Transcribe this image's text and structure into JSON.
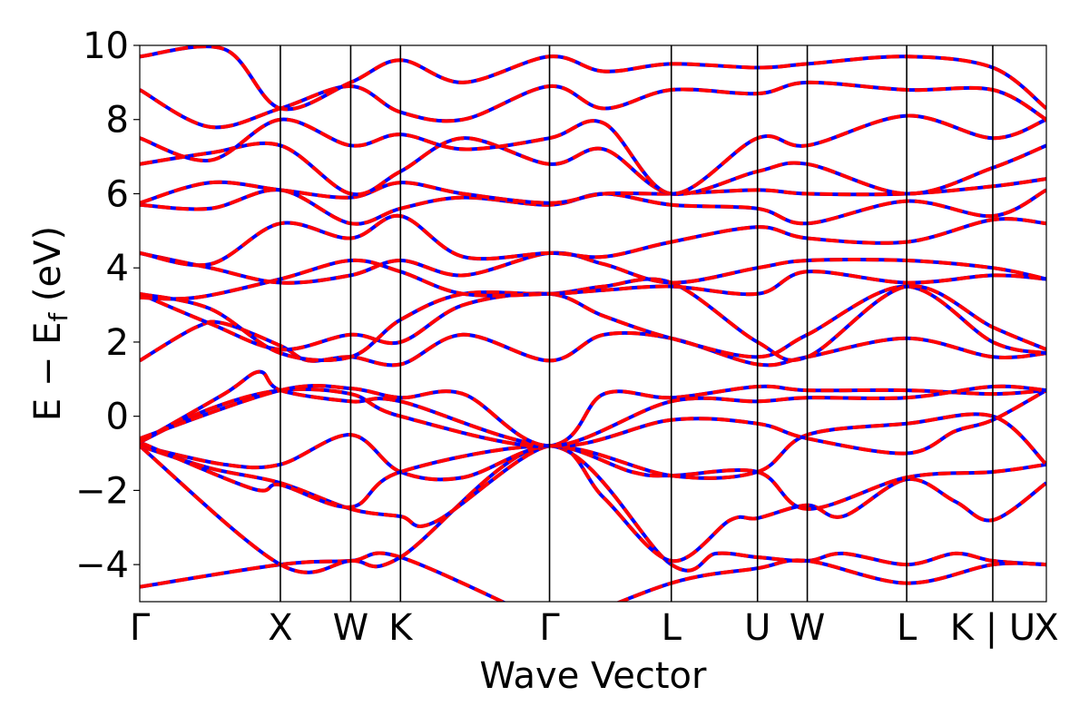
{
  "chart_data": {
    "type": "line",
    "title": "",
    "xlabel": "Wave Vector",
    "ylabel_parts": {
      "main": "E − E",
      "subscript": "f",
      "unit": " (eV)"
    },
    "ylim": [
      -5,
      10
    ],
    "yticks": [
      -4,
      -2,
      0,
      2,
      4,
      6,
      8,
      10
    ],
    "ytick_labels": [
      "−4",
      "−2",
      "0",
      "2",
      "4",
      "6",
      "8",
      "10"
    ],
    "x_range": [
      0,
      6.447
    ],
    "kpoints": [
      {
        "label": "Γ",
        "x": 0.0
      },
      {
        "label": "X",
        "x": 1.0
      },
      {
        "label": "W",
        "x": 1.5
      },
      {
        "label": "K",
        "x": 1.854
      },
      {
        "label": "Γ",
        "x": 2.914
      },
      {
        "label": "L",
        "x": 3.78
      },
      {
        "label": "U",
        "x": 4.393
      },
      {
        "label": "W",
        "x": 4.747
      },
      {
        "label": "L",
        "x": 5.454
      },
      {
        "label": "K | U",
        "x": 6.066
      },
      {
        "label": "X",
        "x": 6.447
      }
    ],
    "grid": false,
    "colors": {
      "series_a": "#0000ff",
      "series_b": "#ff0000",
      "kline": "#000000"
    },
    "bands": [
      [
        [
          0,
          -4.6
        ],
        [
          1.0,
          -4.0
        ],
        [
          1.5,
          -3.9
        ],
        [
          1.854,
          -3.8
        ],
        [
          2.914,
          -5.6
        ]
      ],
      [
        [
          0,
          -0.8
        ],
        [
          1.0,
          -4.0
        ],
        [
          1.5,
          -3.9
        ],
        [
          1.854,
          -3.8
        ],
        [
          2.914,
          -0.8
        ],
        [
          3.78,
          -4.0
        ],
        [
          4.1,
          -3.7
        ],
        [
          4.393,
          -3.8
        ],
        [
          4.747,
          -3.9
        ],
        [
          5.0,
          -3.7
        ],
        [
          5.454,
          -4.0
        ],
        [
          5.8,
          -3.7
        ],
        [
          6.066,
          -3.9
        ],
        [
          6.447,
          -4.0
        ]
      ],
      [
        [
          2.914,
          -5.8
        ],
        [
          3.78,
          -4.5
        ],
        [
          4.393,
          -4.1
        ],
        [
          4.747,
          -3.9
        ],
        [
          5.454,
          -4.5
        ],
        [
          6.066,
          -4.0
        ],
        [
          6.447,
          -4.0
        ]
      ],
      [
        [
          0,
          -0.8
        ],
        [
          0.5,
          -1.4
        ],
        [
          1.0,
          -1.8
        ],
        [
          1.5,
          -2.5
        ],
        [
          1.854,
          -2.7
        ],
        [
          2.1,
          -2.85
        ],
        [
          2.914,
          -0.8
        ],
        [
          3.3,
          -2.2
        ],
        [
          3.78,
          -3.9
        ],
        [
          4.2,
          -2.8
        ],
        [
          4.393,
          -2.75
        ],
        [
          4.747,
          -2.4
        ],
        [
          5.0,
          -2.7
        ],
        [
          5.454,
          -1.7
        ],
        [
          5.8,
          -2.3
        ],
        [
          6.066,
          -2.8
        ],
        [
          6.447,
          -1.8
        ]
      ],
      [
        [
          0,
          -0.8
        ],
        [
          0.6,
          -1.3
        ],
        [
          1.0,
          -1.3
        ],
        [
          1.5,
          -0.5
        ],
        [
          1.854,
          -1.5
        ],
        [
          2.3,
          -1.65
        ],
        [
          2.914,
          -0.8
        ],
        [
          3.5,
          -1.5
        ],
        [
          3.78,
          -1.6
        ],
        [
          4.393,
          -1.5
        ],
        [
          4.747,
          -2.5
        ],
        [
          5.454,
          -1.65
        ],
        [
          6.066,
          -1.5
        ],
        [
          6.447,
          -1.3
        ]
      ],
      [
        [
          0,
          -0.7
        ],
        [
          0.8,
          -1.95
        ],
        [
          1.0,
          -1.85
        ],
        [
          1.5,
          -2.45
        ],
        [
          1.854,
          -1.5
        ],
        [
          2.914,
          -0.8
        ],
        [
          3.78,
          -1.6
        ],
        [
          4.393,
          -1.5
        ],
        [
          4.747,
          -0.5
        ],
        [
          5.454,
          -0.2
        ],
        [
          6.066,
          0.0
        ],
        [
          6.447,
          -1.3
        ]
      ],
      [
        [
          0,
          -0.7
        ],
        [
          0.5,
          0.2
        ],
        [
          1.0,
          0.7
        ],
        [
          1.5,
          0.6
        ],
        [
          1.854,
          0.0
        ],
        [
          2.914,
          -0.8
        ],
        [
          3.3,
          0.6
        ],
        [
          3.78,
          0.5
        ],
        [
          4.393,
          0.8
        ],
        [
          4.747,
          0.7
        ],
        [
          5.454,
          0.7
        ],
        [
          6.066,
          0.6
        ],
        [
          6.447,
          0.7
        ]
      ],
      [
        [
          0,
          -0.7
        ],
        [
          0.6,
          0.6
        ],
        [
          0.85,
          1.2
        ],
        [
          1.0,
          0.7
        ],
        [
          1.5,
          0.4
        ],
        [
          1.854,
          0.4
        ],
        [
          2.914,
          -0.8
        ],
        [
          3.78,
          -0.1
        ],
        [
          4.393,
          -0.2
        ],
        [
          4.747,
          -0.6
        ],
        [
          5.454,
          -1.0
        ],
        [
          5.8,
          -0.4
        ],
        [
          6.066,
          -0.1
        ],
        [
          6.447,
          0.7
        ]
      ],
      [
        [
          0,
          -0.6
        ],
        [
          1.0,
          0.7
        ],
        [
          1.5,
          0.75
        ],
        [
          1.854,
          0.5
        ],
        [
          2.3,
          0.6
        ],
        [
          2.914,
          -0.8
        ],
        [
          3.78,
          0.4
        ],
        [
          4.393,
          0.4
        ],
        [
          4.747,
          0.5
        ],
        [
          5.454,
          0.5
        ],
        [
          6.066,
          0.8
        ],
        [
          6.447,
          0.7
        ]
      ],
      [
        [
          0,
          1.5
        ],
        [
          0.4,
          2.4
        ],
        [
          0.6,
          2.5
        ],
        [
          1.0,
          1.9
        ],
        [
          1.2,
          1.5
        ],
        [
          1.5,
          1.6
        ],
        [
          1.854,
          1.4
        ],
        [
          2.3,
          2.2
        ],
        [
          2.914,
          1.5
        ],
        [
          3.3,
          2.2
        ],
        [
          3.78,
          2.1
        ],
        [
          4.393,
          1.4
        ],
        [
          4.747,
          1.6
        ],
        [
          5.454,
          2.1
        ],
        [
          6.066,
          1.6
        ],
        [
          6.447,
          1.7
        ]
      ],
      [
        [
          0,
          3.3
        ],
        [
          0.5,
          2.5
        ],
        [
          1.0,
          1.8
        ],
        [
          1.5,
          2.2
        ],
        [
          1.854,
          2.0
        ],
        [
          2.3,
          3.0
        ],
        [
          2.914,
          3.3
        ],
        [
          3.3,
          2.7
        ],
        [
          3.78,
          2.1
        ],
        [
          4.393,
          1.6
        ],
        [
          4.747,
          2.2
        ],
        [
          5.454,
          3.5
        ],
        [
          6.066,
          2.0
        ],
        [
          6.447,
          1.7
        ]
      ],
      [
        [
          0,
          3.3
        ],
        [
          0.5,
          2.9
        ],
        [
          1.0,
          1.7
        ],
        [
          1.5,
          1.6
        ],
        [
          1.854,
          2.6
        ],
        [
          2.3,
          3.3
        ],
        [
          2.914,
          3.3
        ],
        [
          3.3,
          3.5
        ],
        [
          3.78,
          3.6
        ],
        [
          4.393,
          2.0
        ],
        [
          4.747,
          1.6
        ],
        [
          5.454,
          3.5
        ],
        [
          6.066,
          2.4
        ],
        [
          6.447,
          1.8
        ]
      ],
      [
        [
          0,
          3.2
        ],
        [
          0.4,
          3.2
        ],
        [
          1.0,
          3.7
        ],
        [
          1.5,
          4.2
        ],
        [
          1.854,
          3.9
        ],
        [
          2.3,
          3.3
        ],
        [
          2.914,
          3.3
        ],
        [
          3.3,
          3.4
        ],
        [
          3.78,
          3.5
        ],
        [
          4.393,
          3.3
        ],
        [
          4.747,
          3.9
        ],
        [
          5.454,
          3.6
        ],
        [
          6.066,
          3.8
        ],
        [
          6.447,
          3.7
        ]
      ],
      [
        [
          0,
          4.4
        ],
        [
          0.5,
          4.0
        ],
        [
          1.0,
          3.6
        ],
        [
          1.5,
          3.8
        ],
        [
          1.854,
          4.2
        ],
        [
          2.3,
          3.8
        ],
        [
          2.914,
          4.4
        ],
        [
          3.3,
          4.1
        ],
        [
          3.78,
          3.6
        ],
        [
          4.393,
          4.0
        ],
        [
          4.747,
          4.2
        ],
        [
          5.454,
          4.2
        ],
        [
          6.066,
          4.0
        ],
        [
          6.447,
          3.7
        ]
      ],
      [
        [
          0,
          4.4
        ],
        [
          0.5,
          4.1
        ],
        [
          1.0,
          5.2
        ],
        [
          1.5,
          4.8
        ],
        [
          1.854,
          5.4
        ],
        [
          2.3,
          4.3
        ],
        [
          2.914,
          4.4
        ],
        [
          3.3,
          4.3
        ],
        [
          3.78,
          4.7
        ],
        [
          4.393,
          5.1
        ],
        [
          4.747,
          4.8
        ],
        [
          5.454,
          4.7
        ],
        [
          6.066,
          5.3
        ],
        [
          6.447,
          5.2
        ]
      ],
      [
        [
          0,
          5.7
        ],
        [
          0.5,
          5.6
        ],
        [
          1.0,
          6.1
        ],
        [
          1.5,
          5.2
        ],
        [
          1.854,
          5.6
        ],
        [
          2.3,
          5.9
        ],
        [
          2.914,
          5.7
        ],
        [
          3.3,
          6.0
        ],
        [
          3.78,
          5.7
        ],
        [
          4.393,
          5.6
        ],
        [
          4.747,
          5.2
        ],
        [
          5.454,
          5.8
        ],
        [
          6.066,
          5.4
        ],
        [
          6.447,
          6.1
        ]
      ],
      [
        [
          0,
          5.75
        ],
        [
          0.5,
          6.3
        ],
        [
          1.0,
          6.1
        ],
        [
          1.5,
          5.9
        ],
        [
          1.854,
          6.3
        ],
        [
          2.3,
          6.0
        ],
        [
          2.914,
          5.75
        ],
        [
          3.3,
          6.0
        ],
        [
          3.78,
          6.0
        ],
        [
          4.393,
          6.1
        ],
        [
          4.747,
          6.0
        ],
        [
          5.454,
          6.0
        ],
        [
          6.066,
          6.2
        ],
        [
          6.447,
          6.4
        ]
      ],
      [
        [
          0,
          6.8
        ],
        [
          0.5,
          7.1
        ],
        [
          1.0,
          7.3
        ],
        [
          1.5,
          6.0
        ],
        [
          1.854,
          6.6
        ],
        [
          2.3,
          7.5
        ],
        [
          2.914,
          6.8
        ],
        [
          3.3,
          7.2
        ],
        [
          3.78,
          6.0
        ],
        [
          4.393,
          6.6
        ],
        [
          4.747,
          6.8
        ],
        [
          5.454,
          6.0
        ],
        [
          6.066,
          6.7
        ],
        [
          6.447,
          7.3
        ]
      ],
      [
        [
          0,
          7.5
        ],
        [
          0.5,
          6.9
        ],
        [
          1.0,
          8.0
        ],
        [
          1.5,
          7.3
        ],
        [
          1.854,
          7.6
        ],
        [
          2.3,
          7.2
        ],
        [
          2.914,
          7.5
        ],
        [
          3.3,
          7.9
        ],
        [
          3.78,
          6.0
        ],
        [
          4.393,
          7.5
        ],
        [
          4.747,
          7.3
        ],
        [
          5.454,
          8.1
        ],
        [
          6.066,
          7.5
        ],
        [
          6.447,
          8.0
        ]
      ],
      [
        [
          0,
          8.8
        ],
        [
          0.5,
          7.8
        ],
        [
          1.0,
          8.3
        ],
        [
          1.5,
          8.9
        ],
        [
          1.854,
          8.2
        ],
        [
          2.3,
          8.0
        ],
        [
          2.914,
          8.9
        ],
        [
          3.3,
          8.3
        ],
        [
          3.78,
          8.8
        ],
        [
          4.393,
          8.7
        ],
        [
          4.747,
          9.0
        ],
        [
          5.454,
          8.8
        ],
        [
          6.066,
          8.8
        ],
        [
          6.447,
          8.0
        ]
      ],
      [
        [
          0,
          9.7
        ],
        [
          0.6,
          9.9
        ],
        [
          1.0,
          8.3
        ],
        [
          1.5,
          9.0
        ],
        [
          1.854,
          9.6
        ],
        [
          2.3,
          9.0
        ],
        [
          2.914,
          9.7
        ],
        [
          3.3,
          9.3
        ],
        [
          3.78,
          9.5
        ],
        [
          4.393,
          9.4
        ],
        [
          4.747,
          9.5
        ],
        [
          5.454,
          9.7
        ],
        [
          6.066,
          9.4
        ],
        [
          6.447,
          8.3
        ]
      ]
    ]
  }
}
